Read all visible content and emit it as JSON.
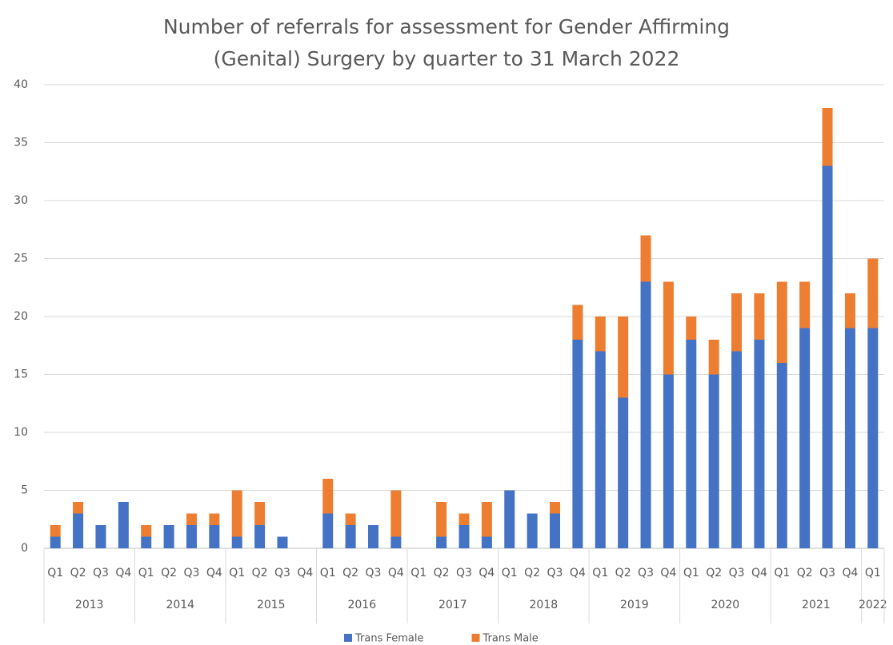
{
  "chart_data": {
    "type": "stacked_bar",
    "title_lines": [
      "Number of referrals for assessment for Gender Affirming",
      "(Genital) Surgery by quarter to 31 March 2022"
    ],
    "category_groups": [
      {
        "label": "2013",
        "categories": [
          "Q1",
          "Q2",
          "Q3",
          "Q4"
        ]
      },
      {
        "label": "2014",
        "categories": [
          "Q1",
          "Q2",
          "Q3",
          "Q4"
        ]
      },
      {
        "label": "2015",
        "categories": [
          "Q1",
          "Q2",
          "Q3",
          "Q4"
        ]
      },
      {
        "label": "2016",
        "categories": [
          "Q1",
          "Q2",
          "Q3",
          "Q4"
        ]
      },
      {
        "label": "2017",
        "categories": [
          "Q1",
          "Q2",
          "Q3",
          "Q4"
        ]
      },
      {
        "label": "2018",
        "categories": [
          "Q1",
          "Q2",
          "Q3",
          "Q4"
        ]
      },
      {
        "label": "2019",
        "categories": [
          "Q1",
          "Q2",
          "Q3",
          "Q4"
        ]
      },
      {
        "label": "2020",
        "categories": [
          "Q1",
          "Q2",
          "Q3",
          "Q4"
        ]
      },
      {
        "label": "2021",
        "categories": [
          "Q1",
          "Q2",
          "Q3",
          "Q4"
        ]
      },
      {
        "label": "2022",
        "categories": [
          "Q1"
        ]
      }
    ],
    "series": [
      {
        "name": "Trans Female",
        "color": "#4472c4",
        "values": [
          1,
          3,
          2,
          4,
          1,
          2,
          2,
          2,
          1,
          2,
          1,
          0,
          3,
          2,
          2,
          1,
          0,
          1,
          2,
          1,
          5,
          3,
          3,
          18,
          17,
          13,
          23,
          15,
          18,
          15,
          17,
          18,
          16,
          19,
          33,
          19,
          19
        ]
      },
      {
        "name": "Trans Male",
        "color": "#ed7d31",
        "values": [
          1,
          1,
          0,
          0,
          1,
          0,
          1,
          1,
          4,
          2,
          0,
          0,
          3,
          1,
          0,
          4,
          0,
          3,
          1,
          3,
          0,
          0,
          1,
          3,
          3,
          7,
          4,
          8,
          2,
          3,
          5,
          4,
          7,
          4,
          5,
          3,
          6
        ]
      }
    ],
    "ylim": [
      0,
      40
    ],
    "yticks": [
      0,
      5,
      10,
      15,
      20,
      25,
      30,
      35,
      40
    ],
    "grid": true,
    "legend": "bottom"
  }
}
